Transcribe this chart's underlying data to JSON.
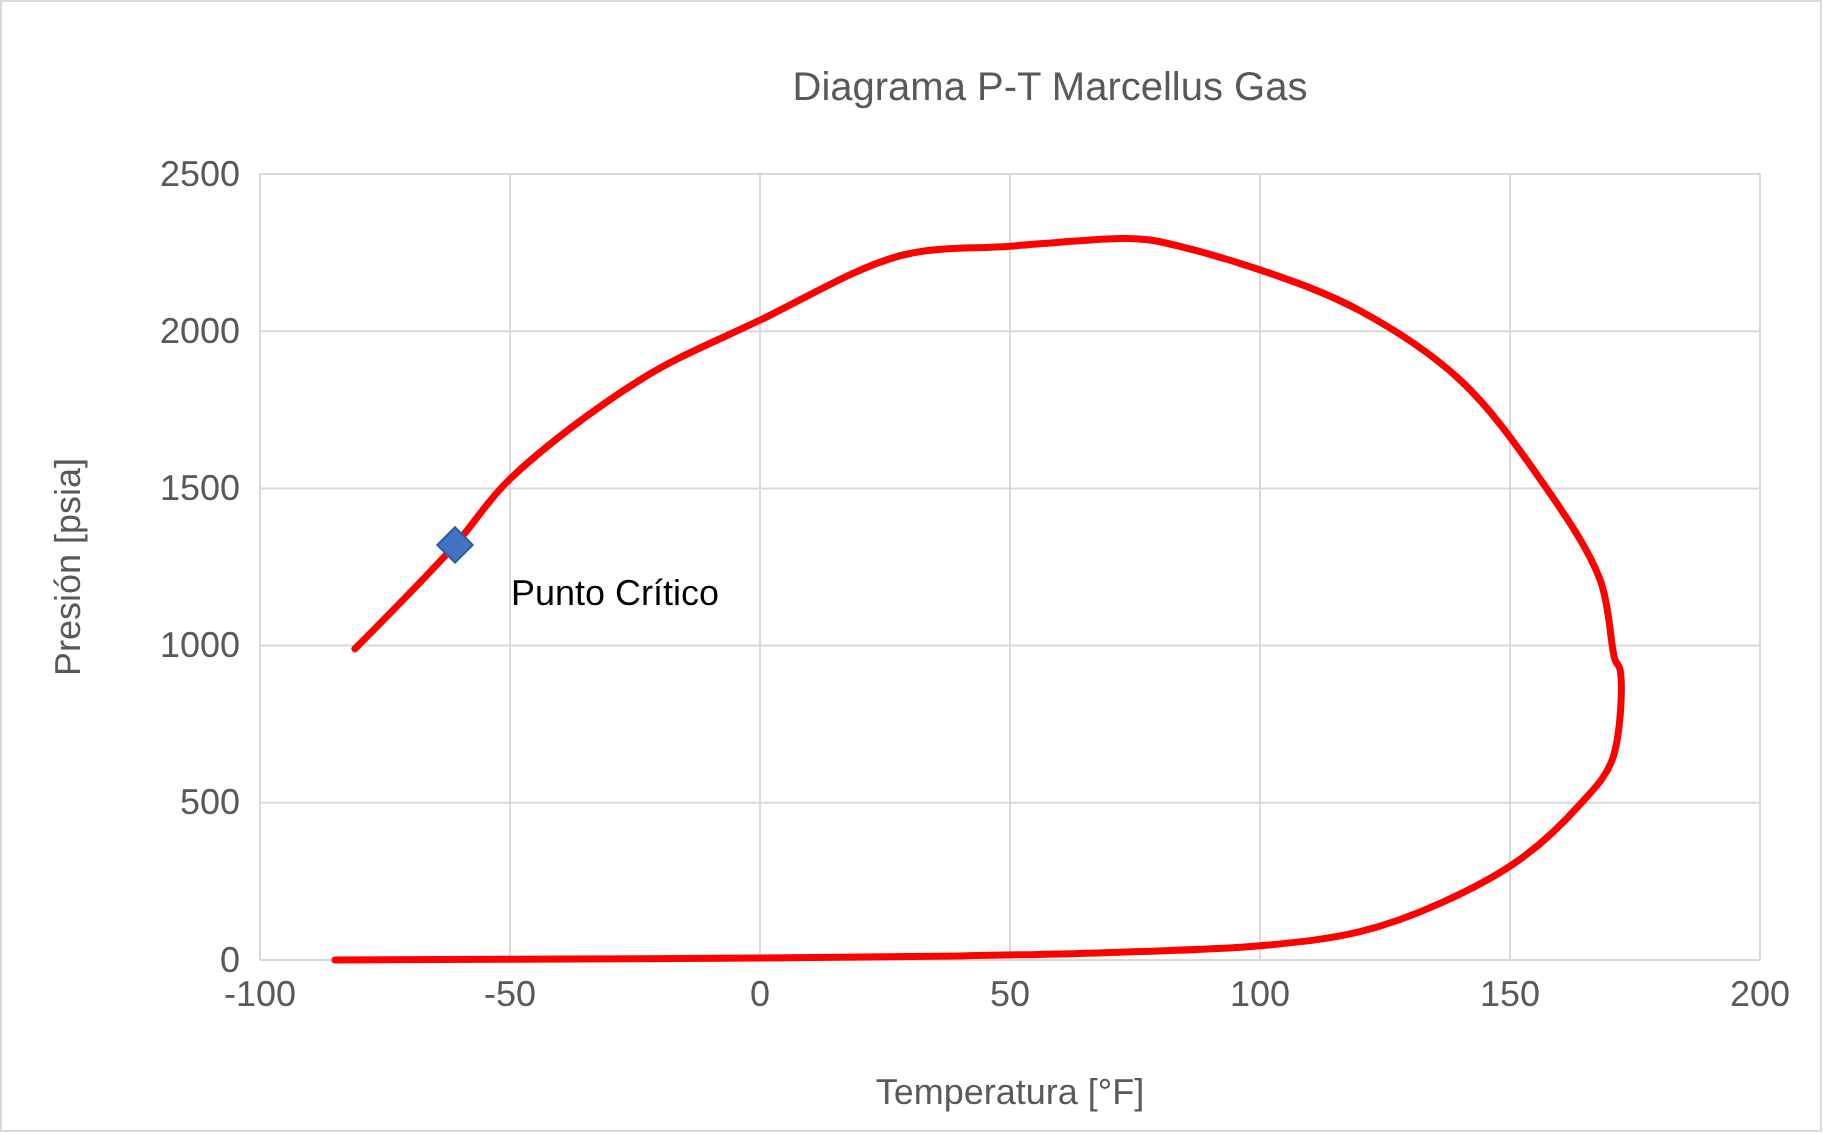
{
  "chart_data": {
    "type": "line",
    "title": "Diagrama P-T Marcellus Gas",
    "xlabel": "Temperatura [°F]",
    "ylabel": "Presión [psia]",
    "xlim": [
      -100,
      200
    ],
    "xticks": [
      -100,
      -50,
      0,
      50,
      100,
      150,
      200
    ],
    "ylim": [
      0,
      2500
    ],
    "yticks": [
      0,
      500,
      1000,
      1500,
      2000,
      2500
    ],
    "grid": true,
    "series": [
      {
        "color": "#ff0000",
        "marker": "none",
        "x": [
          -81,
          -61,
          -50,
          -24,
          0,
          28,
          50,
          72,
          78,
          100,
          120,
          140,
          156,
          168,
          171,
          172,
          170.4,
          164,
          152,
          136,
          120,
          100,
          72,
          40,
          0,
          -52,
          -85
        ],
        "values": [
          990,
          1320,
          1530,
          1845,
          2035,
          2240,
          2270,
          2295,
          2290,
          2195,
          2065,
          1845,
          1530,
          1210,
          955,
          925,
          635,
          495,
          320,
          180,
          90,
          45,
          25,
          13,
          6,
          2,
          0
        ]
      },
      {
        "type": "scatter",
        "color": "#4472c4",
        "marker": "diamond",
        "x": [
          -61
        ],
        "values": [
          1320
        ]
      }
    ],
    "annotations": [
      {
        "text": "Punto Crítico",
        "x": -61,
        "y": 1320
      }
    ]
  }
}
